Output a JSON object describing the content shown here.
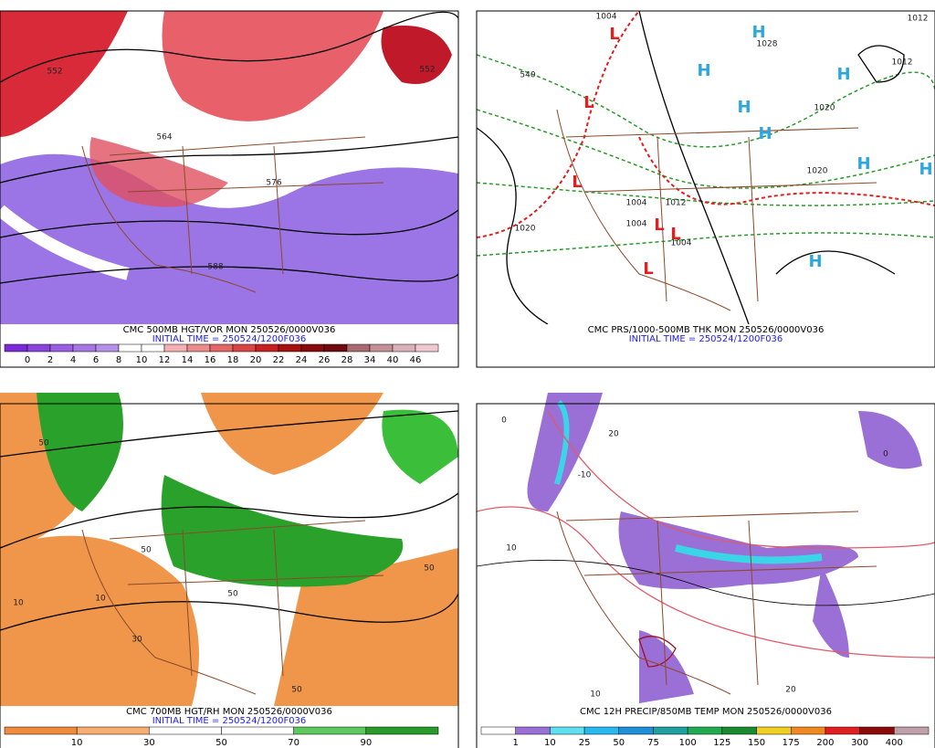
{
  "panels": [
    {
      "title": "CMC 500MB HGT/VOR MON 250526/0000V036",
      "init_time": "INITIAL TIME = 250524/1200F036",
      "colorbar_labels": [
        "0",
        "2",
        "4",
        "6",
        "8",
        "10",
        "12",
        "14",
        "16",
        "18",
        "20",
        "22",
        "24",
        "26",
        "28",
        "34",
        "40",
        "46"
      ],
      "map_labels": [
        "552",
        "552",
        "588",
        "576",
        "564"
      ]
    },
    {
      "title": "CMC PRS/1000-500MB THK MON 250526/0000V036",
      "init_time": "INITIAL TIME = 250524/1200F036",
      "map_labels": [
        "1020",
        "1004",
        "1012",
        "1004",
        "1004",
        "1020",
        "1020",
        "1028",
        "1012",
        "540",
        "1004",
        "1012",
        "H",
        "H",
        "H",
        "H",
        "H",
        "H",
        "H",
        "H",
        "L",
        "L",
        "L",
        "L",
        "L",
        "L"
      ]
    },
    {
      "title": "CMC 700MB HGT/RH MON 250526/0000V036",
      "init_time": "INITIAL TIME = 250524/1200F036",
      "colorbar_labels": [
        "10",
        "30",
        "50",
        "70",
        "90"
      ],
      "map_labels": [
        "50",
        "50",
        "10",
        "50",
        "30",
        "50",
        "10",
        "50"
      ]
    },
    {
      "title": "CMC 12H PRECIP/850MB TEMP MON 250526/0000V036",
      "colorbar_labels": [
        "1",
        "10",
        "25",
        "50",
        "75",
        "100",
        "125",
        "150",
        "175",
        "200",
        "300",
        "400"
      ],
      "map_labels": [
        "0",
        "0",
        "20",
        "20",
        "10",
        "10",
        "-10"
      ]
    }
  ]
}
